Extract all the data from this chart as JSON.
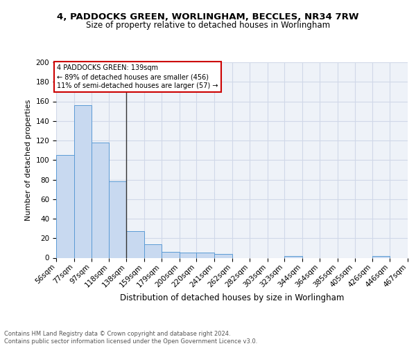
{
  "title1": "4, PADDOCKS GREEN, WORLINGHAM, BECCLES, NR34 7RW",
  "title2": "Size of property relative to detached houses in Worlingham",
  "xlabel": "Distribution of detached houses by size in Worlingham",
  "ylabel": "Number of detached properties",
  "bins": [
    56,
    77,
    97,
    118,
    138,
    159,
    179,
    200,
    220,
    241,
    262,
    282,
    303,
    323,
    344,
    364,
    385,
    405,
    426,
    446,
    467
  ],
  "counts": [
    105,
    156,
    118,
    78,
    27,
    14,
    6,
    5,
    5,
    4,
    0,
    0,
    0,
    2,
    0,
    0,
    0,
    0,
    2,
    0
  ],
  "bar_color": "#c8d9f0",
  "bar_edge_color": "#5b9bd5",
  "grid_color": "#d0d8e8",
  "bg_color": "#eef2f8",
  "vline_x": 138,
  "vline_color": "#333333",
  "annotation_line1": "4 PADDOCKS GREEN: 139sqm",
  "annotation_line2": "← 89% of detached houses are smaller (456)",
  "annotation_line3": "11% of semi-detached houses are larger (57) →",
  "annotation_box_color": "#ffffff",
  "annotation_border_color": "#cc0000",
  "footer_text": "Contains HM Land Registry data © Crown copyright and database right 2024.\nContains public sector information licensed under the Open Government Licence v3.0.",
  "ylim": [
    0,
    200
  ],
  "yticks": [
    0,
    20,
    40,
    60,
    80,
    100,
    120,
    140,
    160,
    180,
    200
  ]
}
